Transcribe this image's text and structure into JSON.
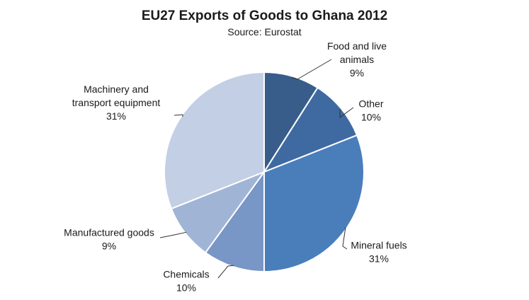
{
  "chart_data": {
    "type": "pie",
    "title": "EU27 Exports of Goods to Ghana 2012",
    "subtitle": "Source: Eurostat",
    "slices": [
      {
        "label": "Food and live animals",
        "label_lines": [
          "Food and live",
          "animals"
        ],
        "pct_text": "9%",
        "value": 9,
        "color": "#385d8a"
      },
      {
        "label": "Other",
        "label_lines": [
          "Other"
        ],
        "pct_text": "10%",
        "value": 10,
        "color": "#3f6aa1"
      },
      {
        "label": "Mineral fuels",
        "label_lines": [
          "Mineral fuels"
        ],
        "pct_text": "31%",
        "value": 31,
        "color": "#4a7ebb"
      },
      {
        "label": "Chemicals",
        "label_lines": [
          "Chemicals"
        ],
        "pct_text": "10%",
        "value": 10,
        "color": "#7896c6"
      },
      {
        "label": "Manufactured goods",
        "label_lines": [
          "Manufactured goods"
        ],
        "pct_text": "9%",
        "value": 9,
        "color": "#a0b4d6"
      },
      {
        "label": "Machinery and transport equipment",
        "label_lines": [
          "Machinery and",
          "transport equipment"
        ],
        "pct_text": "31%",
        "value": 31,
        "color": "#c3cfe4"
      }
    ]
  }
}
